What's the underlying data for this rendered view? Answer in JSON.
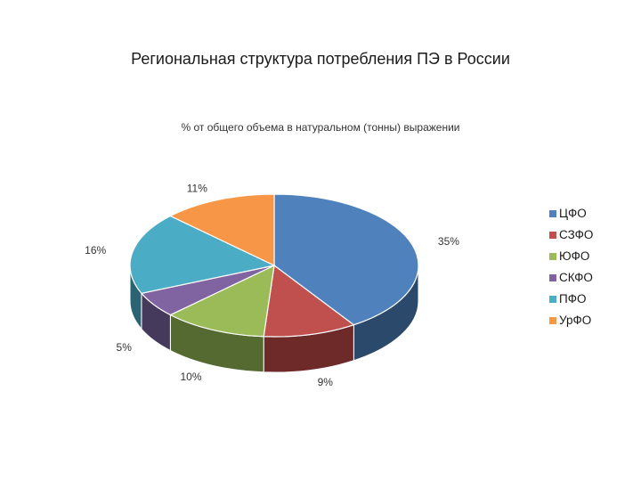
{
  "chart_data": {
    "type": "pie",
    "title": "Региональная структура потребления ПЭ в России",
    "subtitle": "% от общего объема в натуральном (тонны) выражении",
    "labels": [
      "ЦФО",
      "СЗФО",
      "ЮФО",
      "СКФО",
      "ПФО",
      "УрФО"
    ],
    "value_labels": [
      "35%",
      "9%",
      "10%",
      "5%",
      "16%",
      "11%"
    ],
    "values": [
      35,
      9,
      10,
      5,
      16,
      11
    ],
    "colors": [
      "#4f81bd",
      "#c0504d",
      "#9bbb59",
      "#8064a2",
      "#4bacc6",
      "#f79646"
    ],
    "side_colors": [
      "#2b4a6b",
      "#6e2a28",
      "#556a30",
      "#463a5c",
      "#2a6474",
      "#8c5024"
    ],
    "three_d": true,
    "legend_position": "right"
  }
}
